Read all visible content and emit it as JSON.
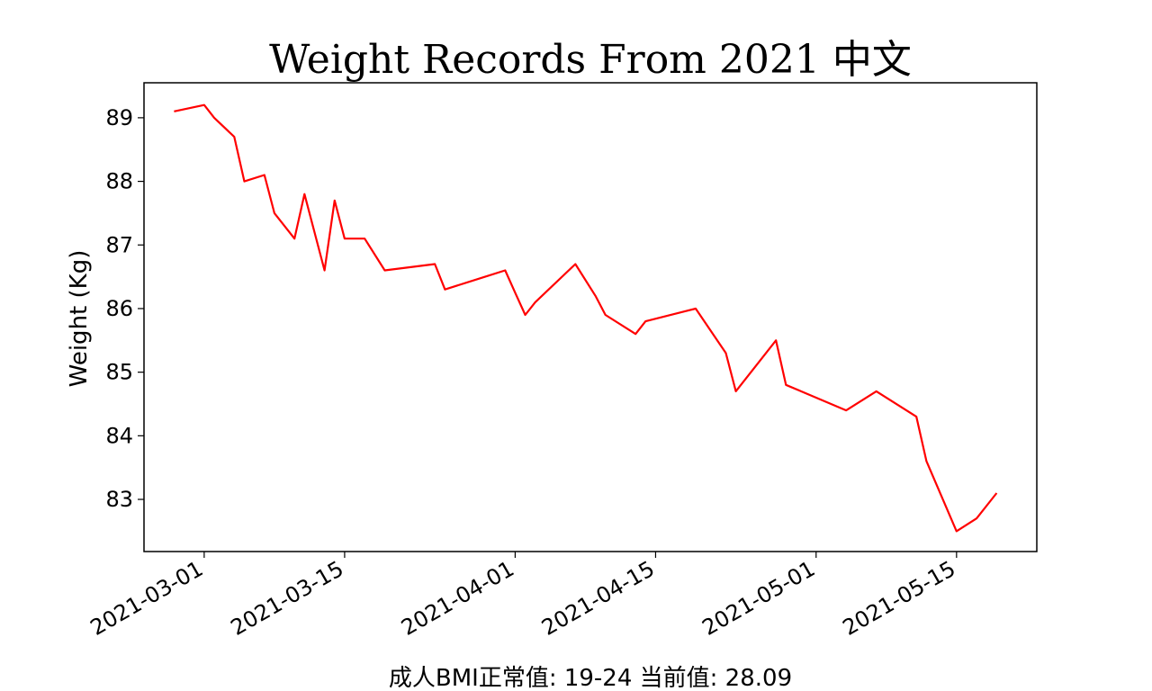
{
  "chart_data": {
    "type": "line",
    "title": "Weight Records From 2021 中文",
    "ylabel": "Weight (Kg)",
    "xlabel": "",
    "footer": "成人BMI正常值: 19-24 当前值: 28.09",
    "x_ticks": [
      "2021-03-01",
      "2021-03-15",
      "2021-04-01",
      "2021-04-15",
      "2021-05-01",
      "2021-05-15"
    ],
    "y_ticks": [
      83,
      84,
      85,
      86,
      87,
      88,
      89
    ],
    "ylim": [
      82.18,
      89.55
    ],
    "xlim": [
      "2021-02-23",
      "2021-05-23"
    ],
    "grid": false,
    "line_color": "#ff0000",
    "series": [
      {
        "x": [
          "2021-02-26",
          "2021-03-01",
          "2021-03-02",
          "2021-03-04",
          "2021-03-05",
          "2021-03-07",
          "2021-03-08",
          "2021-03-10",
          "2021-03-11",
          "2021-03-13",
          "2021-03-14",
          "2021-03-15",
          "2021-03-17",
          "2021-03-19",
          "2021-03-24",
          "2021-03-25",
          "2021-03-29",
          "2021-03-31",
          "2021-04-01",
          "2021-04-02",
          "2021-04-03",
          "2021-04-07",
          "2021-04-09",
          "2021-04-10",
          "2021-04-13",
          "2021-04-14",
          "2021-04-19",
          "2021-04-22",
          "2021-04-23",
          "2021-04-27",
          "2021-04-28",
          "2021-05-04",
          "2021-05-07",
          "2021-05-11",
          "2021-05-12",
          "2021-05-15",
          "2021-05-17",
          "2021-05-19"
        ],
        "values": [
          89.1,
          89.2,
          89.0,
          88.7,
          88.0,
          88.1,
          87.5,
          87.1,
          87.8,
          86.6,
          87.7,
          87.1,
          87.1,
          86.6,
          86.7,
          86.3,
          86.5,
          86.6,
          86.25,
          85.9,
          86.1,
          86.7,
          86.2,
          85.9,
          85.6,
          85.8,
          86.0,
          85.3,
          84.7,
          85.5,
          84.8,
          84.4,
          84.7,
          84.3,
          83.6,
          82.5,
          82.7,
          83.1
        ]
      }
    ]
  }
}
